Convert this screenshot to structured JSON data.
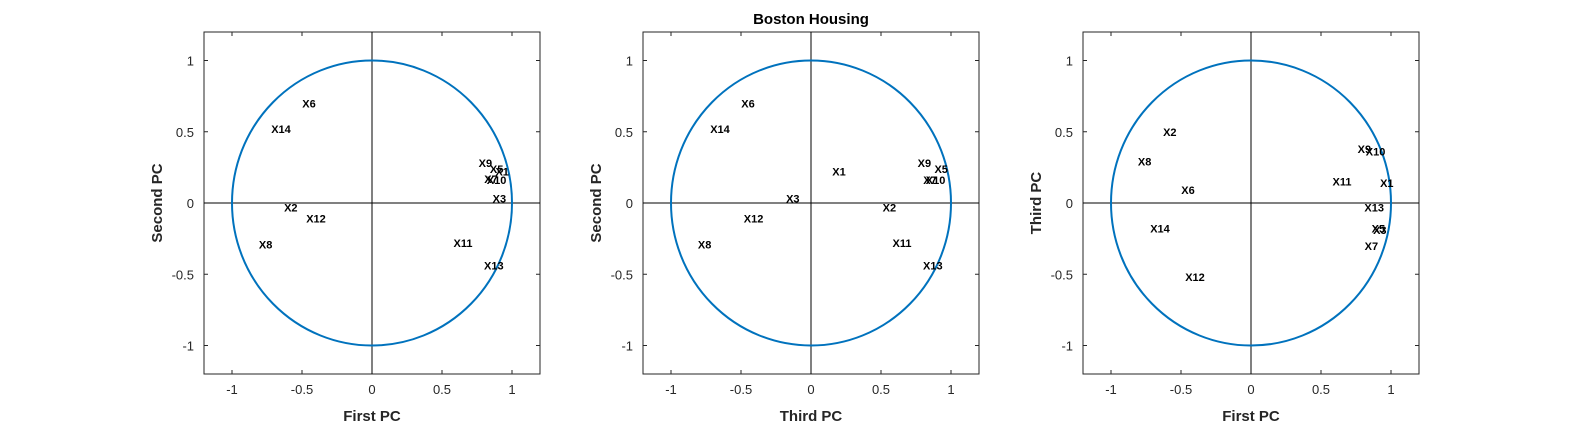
{
  "figure": {
    "title": "Boston Housing"
  },
  "chart_data": [
    {
      "type": "scatter",
      "xlabel": "First PC",
      "ylabel": "Second PC",
      "xlim": [
        -1.2,
        1.2
      ],
      "ylim": [
        -1.2,
        1.2
      ],
      "xticks": [
        -1,
        -0.5,
        0,
        0.5,
        1
      ],
      "yticks": [
        -1,
        -0.5,
        0,
        0.5,
        1
      ],
      "unit_circle": true,
      "circle_color": "#0072BD",
      "points": [
        {
          "label": "X6",
          "x": -0.45,
          "y": 0.7
        },
        {
          "label": "X14",
          "x": -0.65,
          "y": 0.52
        },
        {
          "label": "X9",
          "x": 0.81,
          "y": 0.28
        },
        {
          "label": "X5",
          "x": 0.89,
          "y": 0.24
        },
        {
          "label": "X1",
          "x": 0.93,
          "y": 0.22
        },
        {
          "label": "X7",
          "x": 0.85,
          "y": 0.17
        },
        {
          "label": "X10",
          "x": 0.89,
          "y": 0.16
        },
        {
          "label": "X3",
          "x": 0.91,
          "y": 0.03
        },
        {
          "label": "X2",
          "x": -0.58,
          "y": -0.03
        },
        {
          "label": "X12",
          "x": -0.4,
          "y": -0.11
        },
        {
          "label": "X8",
          "x": -0.76,
          "y": -0.29
        },
        {
          "label": "X11",
          "x": 0.65,
          "y": -0.28
        },
        {
          "label": "X13",
          "x": 0.87,
          "y": -0.44
        }
      ]
    },
    {
      "type": "scatter",
      "xlabel": "Third PC",
      "ylabel": "Second PC",
      "xlim": [
        -1.2,
        1.2
      ],
      "ylim": [
        -1.2,
        1.2
      ],
      "xticks": [
        -1,
        -0.5,
        0,
        0.5,
        1
      ],
      "yticks": [
        -1,
        -0.5,
        0,
        0.5,
        1
      ],
      "unit_circle": true,
      "circle_color": "#0072BD",
      "points": [
        {
          "label": "X6",
          "x": -0.45,
          "y": 0.7
        },
        {
          "label": "X14",
          "x": -0.65,
          "y": 0.52
        },
        {
          "label": "X1",
          "x": 0.2,
          "y": 0.22
        },
        {
          "label": "X9",
          "x": 0.81,
          "y": 0.28
        },
        {
          "label": "X5",
          "x": 0.93,
          "y": 0.24
        },
        {
          "label": "X7",
          "x": 0.85,
          "y": 0.16
        },
        {
          "label": "X10",
          "x": 0.89,
          "y": 0.16
        },
        {
          "label": "X3",
          "x": -0.13,
          "y": 0.03
        },
        {
          "label": "X2",
          "x": 0.56,
          "y": -0.03
        },
        {
          "label": "X12",
          "x": -0.41,
          "y": -0.11
        },
        {
          "label": "X8",
          "x": -0.76,
          "y": -0.29
        },
        {
          "label": "X11",
          "x": 0.65,
          "y": -0.28
        },
        {
          "label": "X13",
          "x": 0.87,
          "y": -0.44
        }
      ]
    },
    {
      "type": "scatter",
      "xlabel": "First PC",
      "ylabel": "Third PC",
      "xlim": [
        -1.2,
        1.2
      ],
      "ylim": [
        -1.2,
        1.2
      ],
      "xticks": [
        -1,
        -0.5,
        0,
        0.5,
        1
      ],
      "yticks": [
        -1,
        -0.5,
        0,
        0.5,
        1
      ],
      "unit_circle": true,
      "circle_color": "#0072BD",
      "points": [
        {
          "label": "X2",
          "x": -0.58,
          "y": 0.5
        },
        {
          "label": "X8",
          "x": -0.76,
          "y": 0.29
        },
        {
          "label": "X9",
          "x": 0.81,
          "y": 0.38
        },
        {
          "label": "X10",
          "x": 0.89,
          "y": 0.36
        },
        {
          "label": "X6",
          "x": -0.45,
          "y": 0.09
        },
        {
          "label": "X11",
          "x": 0.65,
          "y": 0.15
        },
        {
          "label": "X1",
          "x": 0.97,
          "y": 0.14
        },
        {
          "label": "X13",
          "x": 0.88,
          "y": -0.03
        },
        {
          "label": "X14",
          "x": -0.65,
          "y": -0.18
        },
        {
          "label": "X5",
          "x": 0.91,
          "y": -0.18
        },
        {
          "label": "X3",
          "x": 0.92,
          "y": -0.19
        },
        {
          "label": "X7",
          "x": 0.86,
          "y": -0.3
        },
        {
          "label": "X12",
          "x": -0.4,
          "y": -0.52
        }
      ]
    }
  ]
}
